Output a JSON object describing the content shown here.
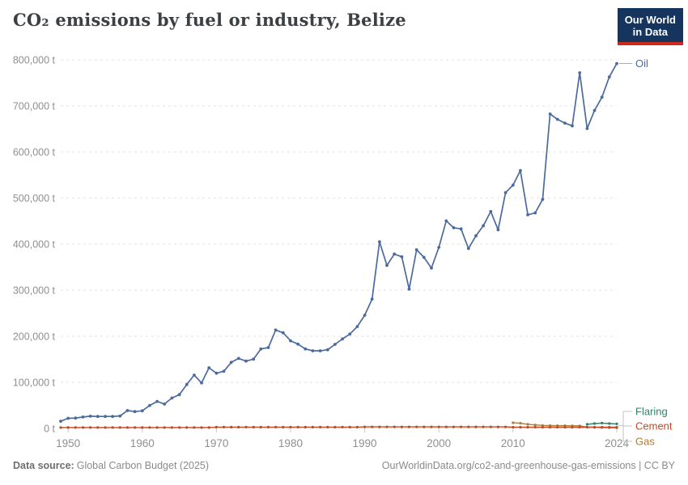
{
  "header": {
    "title": "CO₂ emissions by fuel or industry, Belize",
    "logo_line1": "Our World",
    "logo_line2": "in Data"
  },
  "footer": {
    "source_label": "Data source:",
    "source_value": "Global Carbon Budget (2025)",
    "attribution": "OurWorldinData.org/co2-and-greenhouse-gas-emissions | CC BY"
  },
  "colors": {
    "oil": "#4C6A9D",
    "flaring": "#2C8465",
    "cement": "#C14A24",
    "gas": "#AE7C39",
    "grid": "#E2E2E2",
    "tick": "#C8C8C8",
    "axis_text": "#8F8F8F",
    "connector": "#CCCCCC",
    "oil_connector": "#A8A8A8",
    "title_text": "#3C4043",
    "logo_bg": "#16355E",
    "logo_underline": "#CC2A1D"
  },
  "chart_data": {
    "type": "line",
    "title": "CO₂ emissions by fuel or industry, Belize",
    "unit": "t",
    "ylim": [
      0,
      800000
    ],
    "xlim": [
      1949,
      2024
    ],
    "yticks": [
      0,
      100000,
      200000,
      300000,
      400000,
      500000,
      600000,
      700000,
      800000
    ],
    "ytick_suffix": " t",
    "xticks": [
      1950,
      1960,
      1970,
      1980,
      1990,
      2000,
      2010,
      2024
    ],
    "grid": "horizontal dashed, no vertical gridlines",
    "legend_position": "labels at right edge of lines",
    "legend_order_top_to_bottom": [
      "Oil",
      "Flaring",
      "Cement",
      "Gas"
    ],
    "series": [
      {
        "name": "Oil",
        "color": "#4C6A9D",
        "start_year": 1949,
        "values": [
          15700,
          22000,
          22400,
          24700,
          26500,
          26000,
          26000,
          26000,
          27100,
          38800,
          36500,
          38200,
          49900,
          58600,
          52800,
          65900,
          73300,
          95300,
          115800,
          98800,
          131600,
          119900,
          124000,
          143300,
          152000,
          146200,
          150300,
          172500,
          175400,
          213500,
          207600,
          190100,
          183000,
          172500,
          168400,
          168400,
          170700,
          182500,
          194200,
          204700,
          221100,
          245600,
          280700,
          405000,
          353800,
          378400,
          372500,
          302300,
          387700,
          371300,
          348000,
          393000,
          450300,
          435700,
          433000,
          390600,
          418000,
          439800,
          470800,
          431000,
          511700,
          528000,
          559600,
          463700,
          467800,
          497000,
          682500,
          670800,
          662600,
          656700,
          771900,
          650900,
          690000,
          719000,
          763000,
          792000
        ]
      },
      {
        "name": "Flaring",
        "color": "#2C8465",
        "start_year": 2020,
        "values": [
          9000,
          10500,
          11500,
          10500,
          9800
        ]
      },
      {
        "name": "Cement",
        "color": "#C14A24",
        "start_year": 1949,
        "values": [
          2000,
          2000,
          2000,
          2000,
          2000,
          2000,
          2000,
          2000,
          2000,
          2000,
          2000,
          2000,
          2000,
          2000,
          2000,
          2000,
          2000,
          2000,
          2000,
          2000,
          2000,
          2800,
          2800,
          2800,
          2800,
          2800,
          2800,
          2800,
          2800,
          2800,
          2800,
          2800,
          2800,
          2800,
          2800,
          2800,
          2800,
          2800,
          2800,
          2800,
          2800,
          3400,
          3400,
          3400,
          3400,
          3400,
          3400,
          3400,
          3400,
          3400,
          3400,
          3400,
          3400,
          3400,
          3400,
          3400,
          3400,
          3400,
          3400,
          3400,
          3400,
          2600,
          2600,
          2600,
          2600,
          2600,
          2600,
          2600,
          2600,
          2600,
          2600,
          2600,
          2600,
          2600,
          2600,
          2600
        ]
      },
      {
        "name": "Gas",
        "color": "#AE7C39",
        "start_year": 2010,
        "values": [
          12300,
          11300,
          9000,
          7500,
          6500,
          6200,
          6000,
          6000,
          5800,
          5600,
          3000,
          2400,
          2000,
          1600,
          1300
        ]
      }
    ]
  }
}
